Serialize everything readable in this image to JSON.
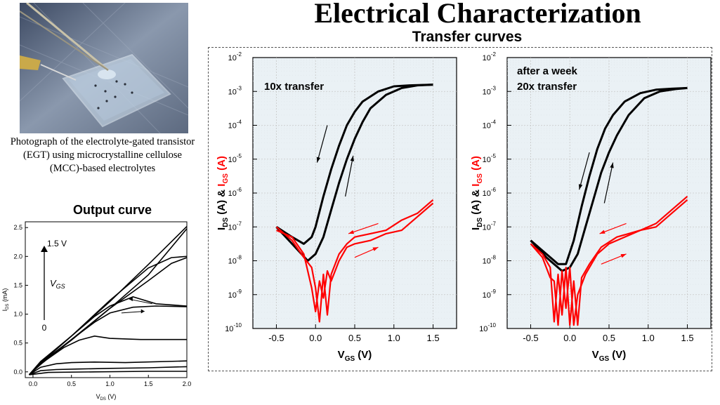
{
  "slide": {
    "title": "Electrical Characterization",
    "subtitle": "Transfer curves",
    "photo_caption": "Photograph of the electrolyte-gated transistor (EGT) using microcrystalline cellulose (MCC)-based electrolytes",
    "output_title": "Output curve"
  },
  "colors": {
    "black_curve": "#000000",
    "red_curve": "#ff0000",
    "panel_bg": "#eaf1f5",
    "grid": "#c8c8c8"
  },
  "chart_data": [
    {
      "type": "line",
      "title": "Output curve",
      "xlabel_main": "V",
      "xlabel_sub": "DS",
      "xlabel_unit": "(V)",
      "ylabel_main": "I",
      "ylabel_sub": "DS",
      "ylabel_unit": "(mA)",
      "xlim": [
        -0.1,
        2.0
      ],
      "ylim": [
        -0.1,
        2.6
      ],
      "xticks": [
        0.0,
        0.5,
        1.0,
        1.5,
        2.0
      ],
      "xtick_labels": [
        "0.0",
        "0.5",
        "1.0",
        "1.5",
        "2.0"
      ],
      "yticks": [
        0.0,
        0.5,
        1.0,
        1.5,
        2.0,
        2.5
      ],
      "ytick_labels": [
        "0.0",
        "0.5",
        "1.0",
        "1.5",
        "2.0",
        "2.5"
      ],
      "annotations": {
        "top_label": "1.5 V",
        "vgs_main": "V",
        "vgs_sub": "GS",
        "bottom_label": "0"
      },
      "series": [
        {
          "x": [
            -0.05,
            0.1,
            0.5,
            1.0,
            1.5,
            2.0
          ],
          "y": [
            -0.05,
            0.18,
            0.62,
            1.22,
            1.86,
            2.52
          ]
        },
        {
          "x": [
            -0.05,
            0.1,
            0.5,
            1.0,
            1.5,
            2.0
          ],
          "y": [
            -0.05,
            0.15,
            0.56,
            1.1,
            1.68,
            2.48
          ]
        },
        {
          "x": [
            -0.05,
            0.1,
            0.5,
            1.0,
            1.5,
            1.8,
            2.0
          ],
          "y": [
            -0.05,
            0.16,
            0.62,
            1.24,
            1.8,
            1.98,
            2.0
          ]
        },
        {
          "x": [
            -0.05,
            0.1,
            0.5,
            1.0,
            1.5,
            1.8,
            2.0
          ],
          "y": [
            -0.05,
            0.14,
            0.55,
            1.1,
            1.58,
            1.88,
            1.98
          ]
        },
        {
          "x": [
            -0.05,
            0.1,
            0.5,
            0.8,
            1.0,
            1.3,
            1.6,
            2.0
          ],
          "y": [
            -0.05,
            0.15,
            0.62,
            0.96,
            1.14,
            1.3,
            1.18,
            1.14
          ]
        },
        {
          "x": [
            -0.05,
            0.1,
            0.5,
            0.8,
            1.0,
            1.3,
            1.6,
            2.0
          ],
          "y": [
            -0.05,
            0.13,
            0.56,
            0.86,
            1.02,
            1.12,
            1.14,
            1.13
          ]
        },
        {
          "x": [
            -0.05,
            0.1,
            0.4,
            0.6,
            0.8,
            1.0,
            1.4,
            2.0
          ],
          "y": [
            -0.05,
            0.14,
            0.42,
            0.55,
            0.62,
            0.58,
            0.56,
            0.56
          ]
        },
        {
          "x": [
            -0.05,
            0.1,
            0.3,
            0.5,
            0.8,
            1.2,
            2.0
          ],
          "y": [
            -0.05,
            0.08,
            0.14,
            0.16,
            0.17,
            0.16,
            0.19
          ]
        },
        {
          "x": [
            -0.05,
            0.1,
            0.3,
            0.6,
            1.0,
            1.5,
            2.0
          ],
          "y": [
            -0.05,
            0.02,
            0.04,
            0.05,
            0.06,
            0.07,
            0.09
          ]
        },
        {
          "x": [
            -0.05,
            0.2,
            0.8,
            1.5,
            2.0
          ],
          "y": [
            -0.05,
            -0.01,
            0.0,
            0.01,
            0.01
          ]
        }
      ]
    },
    {
      "type": "line",
      "label": "10x transfer",
      "xlabel_main": "V",
      "xlabel_sub": "GS",
      "xlabel_unit": "(V)",
      "ylabel": "I_DS (A) & I_GS (A)",
      "ylabel_parts": {
        "i1": "I",
        "s1": "DS",
        "mid": " (A) & ",
        "i2": "I",
        "s2": "GS",
        "end": " (A)"
      },
      "yscale": "log",
      "xlim": [
        -0.8,
        1.8
      ],
      "ylim_exp": [
        -10,
        -2
      ],
      "xticks": [
        -0.5,
        0.0,
        0.5,
        1.0,
        1.5
      ],
      "xtick_labels": [
        "-0.5",
        "0.0",
        "0.5",
        "1.0",
        "1.5"
      ],
      "ytick_labels": [
        "10^-10",
        "10^-9",
        "10^-8",
        "10^-7",
        "10^-6",
        "10^-5",
        "10^-4",
        "10^-3",
        "10^-2"
      ],
      "grid": true,
      "series": [
        {
          "color": "black",
          "x": [
            -0.5,
            -0.3,
            -0.15,
            -0.05,
            0.0,
            0.1,
            0.2,
            0.3,
            0.4,
            0.5,
            0.6,
            0.8,
            1.0,
            1.2,
            1.5
          ],
          "log_y": [
            -7.0,
            -7.3,
            -7.5,
            -7.3,
            -7.0,
            -6.1,
            -5.3,
            -4.6,
            -4.0,
            -3.6,
            -3.3,
            -3.0,
            -2.85,
            -2.82,
            -2.8
          ]
        },
        {
          "color": "black",
          "x": [
            -0.5,
            -0.3,
            -0.1,
            0.0,
            0.1,
            0.2,
            0.3,
            0.4,
            0.5,
            0.6,
            0.7,
            0.9,
            1.1,
            1.3,
            1.5
          ],
          "log_y": [
            -7.0,
            -7.5,
            -8.0,
            -7.8,
            -7.3,
            -6.5,
            -5.7,
            -5.0,
            -4.4,
            -3.9,
            -3.5,
            -3.1,
            -2.9,
            -2.82,
            -2.8
          ]
        },
        {
          "color": "red",
          "x": [
            -0.5,
            -0.3,
            -0.15,
            -0.05,
            0.0,
            0.05,
            0.1,
            0.15,
            0.2,
            0.3,
            0.4,
            0.5,
            0.7,
            0.9,
            1.1,
            1.3,
            1.5
          ],
          "log_y": [
            -7.1,
            -7.3,
            -7.8,
            -8.8,
            -9.5,
            -8.6,
            -9.1,
            -8.3,
            -8.6,
            -8.0,
            -7.6,
            -7.5,
            -7.4,
            -7.2,
            -7.1,
            -6.7,
            -6.3
          ]
        },
        {
          "color": "red",
          "x": [
            -0.5,
            -0.3,
            -0.15,
            -0.05,
            0.0,
            0.05,
            0.1,
            0.15,
            0.2,
            0.3,
            0.4,
            0.5,
            0.7,
            0.9,
            1.1,
            1.3,
            1.5
          ],
          "log_y": [
            -7.0,
            -7.4,
            -7.9,
            -8.2,
            -8.8,
            -9.8,
            -8.4,
            -9.6,
            -8.4,
            -7.8,
            -7.5,
            -7.3,
            -7.2,
            -7.1,
            -6.8,
            -6.6,
            -6.2
          ]
        }
      ]
    },
    {
      "type": "line",
      "label_line1": "after a week",
      "label_line2": "20x transfer",
      "xlabel_main": "V",
      "xlabel_sub": "GS",
      "xlabel_unit": "(V)",
      "ylabel": "I_DS (A) & I_GS (A)",
      "ylabel_parts": {
        "i1": "I",
        "s1": "DS",
        "mid": " (A) & ",
        "i2": "I",
        "s2": "GS",
        "end": " (A)"
      },
      "yscale": "log",
      "xlim": [
        -0.8,
        1.8
      ],
      "ylim_exp": [
        -10,
        -2
      ],
      "xticks": [
        -0.5,
        0.0,
        0.5,
        1.0,
        1.5
      ],
      "xtick_labels": [
        "-0.5",
        "0.0",
        "0.5",
        "1.0",
        "1.5"
      ],
      "ytick_labels": [
        "10^-10",
        "10^-9",
        "10^-8",
        "10^-7",
        "10^-6",
        "10^-5",
        "10^-4",
        "10^-3",
        "10^-2"
      ],
      "grid": true,
      "series": [
        {
          "color": "black",
          "x": [
            -0.5,
            -0.3,
            -0.15,
            -0.05,
            0.05,
            0.15,
            0.25,
            0.35,
            0.45,
            0.55,
            0.7,
            0.9,
            1.1,
            1.3,
            1.5
          ],
          "log_y": [
            -7.4,
            -7.8,
            -8.1,
            -8.1,
            -7.4,
            -6.4,
            -5.5,
            -4.7,
            -4.1,
            -3.7,
            -3.3,
            -3.05,
            -2.95,
            -2.92,
            -2.9
          ]
        },
        {
          "color": "black",
          "x": [
            -0.5,
            -0.3,
            -0.1,
            0.0,
            0.1,
            0.2,
            0.3,
            0.4,
            0.5,
            0.6,
            0.75,
            0.95,
            1.15,
            1.35,
            1.5
          ],
          "log_y": [
            -7.4,
            -7.9,
            -8.3,
            -8.2,
            -7.8,
            -7.0,
            -6.2,
            -5.4,
            -4.8,
            -4.3,
            -3.7,
            -3.2,
            -3.0,
            -2.93,
            -2.9
          ]
        },
        {
          "color": "red",
          "x": [
            -0.5,
            -0.35,
            -0.25,
            -0.2,
            -0.15,
            -0.1,
            -0.05,
            0.0,
            0.05,
            0.1,
            0.15,
            0.25,
            0.4,
            0.6,
            0.9,
            1.1,
            1.3,
            1.5
          ],
          "log_y": [
            -7.5,
            -7.8,
            -8.2,
            -9.8,
            -8.4,
            -9.6,
            -8.2,
            -9.9,
            -8.6,
            -9.9,
            -8.5,
            -8.1,
            -7.6,
            -7.3,
            -7.1,
            -7.0,
            -6.6,
            -6.2
          ]
        },
        {
          "color": "red",
          "x": [
            -0.5,
            -0.35,
            -0.25,
            -0.2,
            -0.15,
            -0.1,
            -0.05,
            0.0,
            0.05,
            0.1,
            0.2,
            0.35,
            0.5,
            0.7,
            0.9,
            1.1,
            1.3,
            1.5
          ],
          "log_y": [
            -7.5,
            -7.9,
            -8.5,
            -8.6,
            -9.9,
            -8.3,
            -9.4,
            -8.2,
            -9.9,
            -9.0,
            -8.4,
            -7.8,
            -7.5,
            -7.3,
            -7.1,
            -6.9,
            -6.5,
            -6.1
          ]
        }
      ]
    }
  ]
}
